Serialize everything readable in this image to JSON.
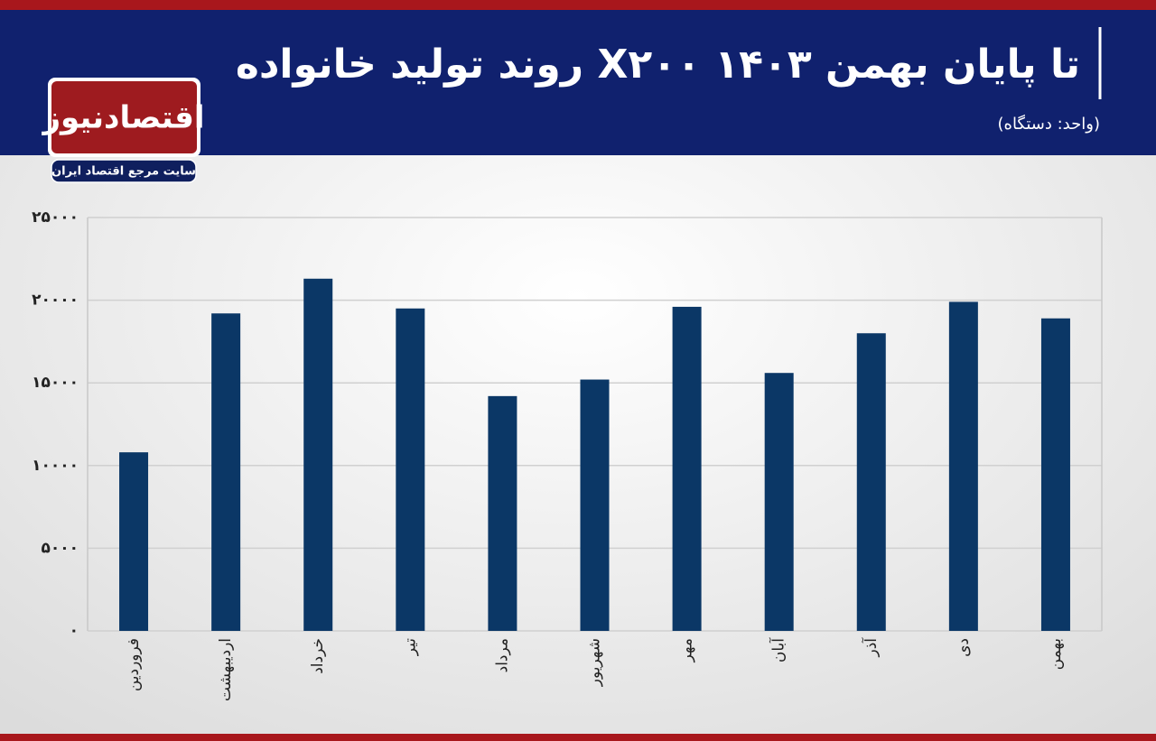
{
  "header": {
    "logo": "اقتصادنیوز",
    "logo_tagline": "سایت مرجع اقتصاد ایران"
  },
  "chart_data": {
    "type": "bar",
    "title": "روند تولید خانواده X۲۰۰ تا پایان بهمن ۱۴۰۳",
    "subtitle": "(واحد: دستگاه)",
    "categories": [
      "فروردین",
      "اردیبهشت",
      "خرداد",
      "تیر",
      "مرداد",
      "شهریور",
      "مهر",
      "آبان",
      "آذر",
      "دی",
      "بهمن"
    ],
    "values": [
      10800,
      19200,
      21300,
      19500,
      14200,
      15200,
      19600,
      15600,
      18000,
      19900,
      18900
    ],
    "color": "#0b3766",
    "ylim": [
      0,
      25000
    ],
    "yticks": [
      {
        "value": 0,
        "label": "۰"
      },
      {
        "value": 5000,
        "label": "۵۰۰۰"
      },
      {
        "value": 10000,
        "label": "۱۰۰۰۰"
      },
      {
        "value": 15000,
        "label": "۱۵۰۰۰"
      },
      {
        "value": 20000,
        "label": "۲۰۰۰۰"
      },
      {
        "value": 25000,
        "label": "۲۵۰۰۰"
      }
    ],
    "grid": true
  }
}
